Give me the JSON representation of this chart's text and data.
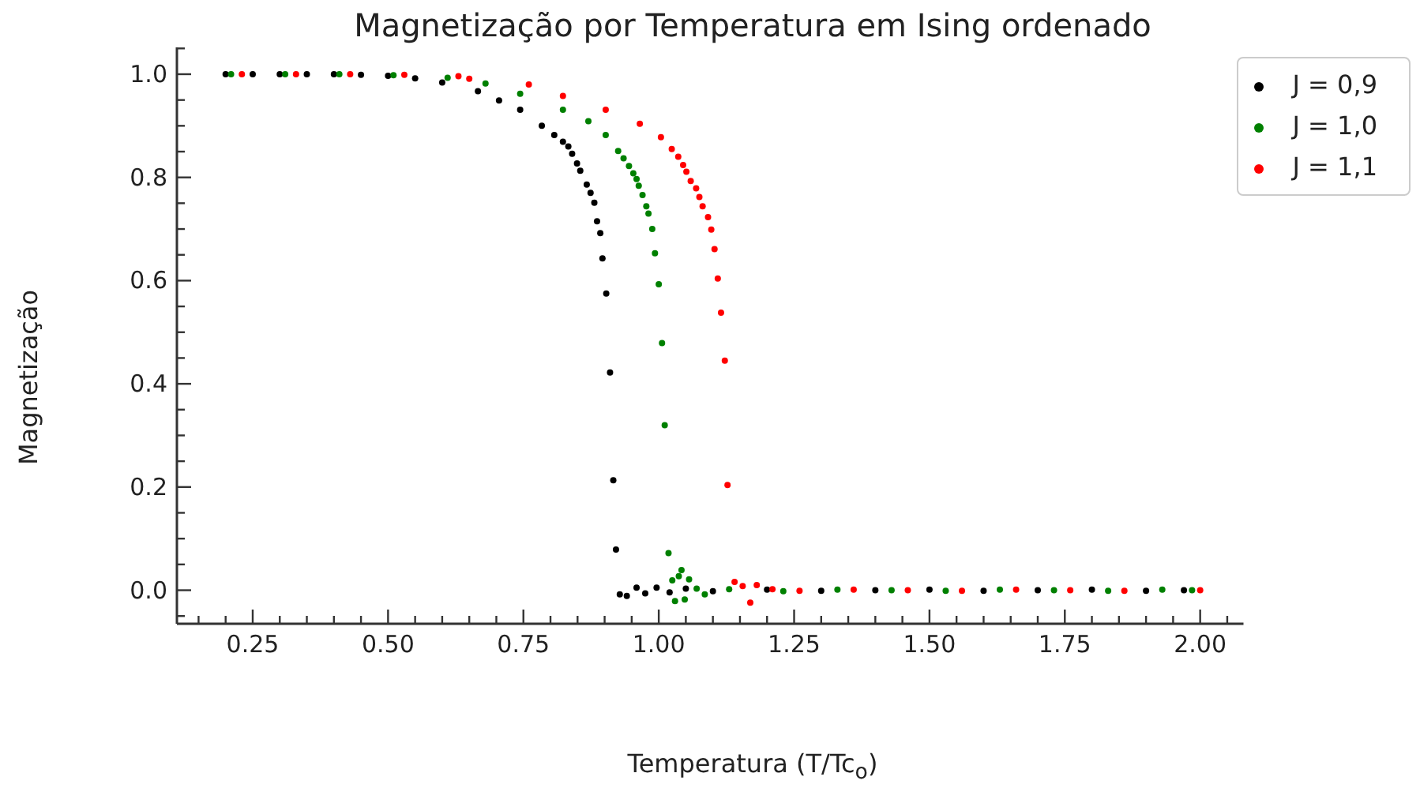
{
  "chart_data": {
    "type": "scatter",
    "title": "Magnetização por Temperatura em Ising ordenado",
    "xlabel": "Temperatura (T/Tc$_{o}$)",
    "ylabel": "Magnetização",
    "xlim": [
      0.11,
      2.08
    ],
    "ylim": [
      -0.065,
      1.052
    ],
    "xticks": [
      {
        "value": 0.15,
        "label": null
      },
      {
        "value": 0.2,
        "label": null
      },
      {
        "value": 0.25,
        "label": "0.25"
      },
      {
        "value": 0.3,
        "label": null
      },
      {
        "value": 0.35,
        "label": null
      },
      {
        "value": 0.4,
        "label": null
      },
      {
        "value": 0.45,
        "label": null
      },
      {
        "value": 0.5,
        "label": "0.50"
      },
      {
        "value": 0.55,
        "label": null
      },
      {
        "value": 0.6,
        "label": null
      },
      {
        "value": 0.65,
        "label": null
      },
      {
        "value": 0.7,
        "label": null
      },
      {
        "value": 0.75,
        "label": "0.75"
      },
      {
        "value": 0.8,
        "label": null
      },
      {
        "value": 0.85,
        "label": null
      },
      {
        "value": 0.9,
        "label": null
      },
      {
        "value": 0.95,
        "label": null
      },
      {
        "value": 1.0,
        "label": "1.00"
      },
      {
        "value": 1.05,
        "label": null
      },
      {
        "value": 1.1,
        "label": null
      },
      {
        "value": 1.15,
        "label": null
      },
      {
        "value": 1.2,
        "label": null
      },
      {
        "value": 1.25,
        "label": "1.25"
      },
      {
        "value": 1.3,
        "label": null
      },
      {
        "value": 1.35,
        "label": null
      },
      {
        "value": 1.4,
        "label": null
      },
      {
        "value": 1.45,
        "label": null
      },
      {
        "value": 1.5,
        "label": "1.50"
      },
      {
        "value": 1.55,
        "label": null
      },
      {
        "value": 1.6,
        "label": null
      },
      {
        "value": 1.65,
        "label": null
      },
      {
        "value": 1.7,
        "label": null
      },
      {
        "value": 1.75,
        "label": "1.75"
      },
      {
        "value": 1.8,
        "label": null
      },
      {
        "value": 1.85,
        "label": null
      },
      {
        "value": 1.9,
        "label": null
      },
      {
        "value": 1.95,
        "label": null
      },
      {
        "value": 2.0,
        "label": "2.00"
      },
      {
        "value": 2.05,
        "label": null
      }
    ],
    "yticks": [
      {
        "value": -0.05,
        "label": null
      },
      {
        "value": 0,
        "label": "0.0"
      },
      {
        "value": 0.05,
        "label": null
      },
      {
        "value": 0.1,
        "label": null
      },
      {
        "value": 0.15,
        "label": null
      },
      {
        "value": 0.2,
        "label": "0.2"
      },
      {
        "value": 0.25,
        "label": null
      },
      {
        "value": 0.3,
        "label": null
      },
      {
        "value": 0.35,
        "label": null
      },
      {
        "value": 0.4,
        "label": "0.4"
      },
      {
        "value": 0.45,
        "label": null
      },
      {
        "value": 0.5,
        "label": null
      },
      {
        "value": 0.55,
        "label": null
      },
      {
        "value": 0.6,
        "label": "0.6"
      },
      {
        "value": 0.65,
        "label": null
      },
      {
        "value": 0.7,
        "label": null
      },
      {
        "value": 0.75,
        "label": null
      },
      {
        "value": 0.8,
        "label": "0.8"
      },
      {
        "value": 0.85,
        "label": null
      },
      {
        "value": 0.9,
        "label": null
      },
      {
        "value": 0.95,
        "label": null
      },
      {
        "value": 1.0,
        "label": "1.0"
      },
      {
        "value": 1.05,
        "label": null
      }
    ],
    "legend": "top right",
    "marker": "circle",
    "series": [
      {
        "name": "J = 0,9",
        "color": "#000000",
        "x": [
          0.2,
          0.25,
          0.3,
          0.35,
          0.4,
          0.45,
          0.5,
          0.55,
          0.6,
          0.666,
          0.705,
          0.744,
          0.784,
          0.807,
          0.823,
          0.833,
          0.84,
          0.849,
          0.855,
          0.867,
          0.874,
          0.881,
          0.886,
          0.892,
          0.896,
          0.903,
          0.91,
          0.916,
          0.921,
          0.928,
          0.941,
          0.959,
          0.975,
          0.996,
          1.02,
          1.05,
          1.1,
          1.2,
          1.3,
          1.4,
          1.5,
          1.6,
          1.7,
          1.8,
          1.9,
          1.97
        ],
        "values": [
          1,
          1,
          1,
          1,
          1,
          0.999,
          0.997,
          0.992,
          0.984,
          0.967,
          0.949,
          0.931,
          0.9,
          0.882,
          0.869,
          0.86,
          0.846,
          0.827,
          0.813,
          0.786,
          0.77,
          0.751,
          0.715,
          0.692,
          0.643,
          0.575,
          0.422,
          0.213,
          0.079,
          -0.008,
          -0.011,
          0.005,
          -0.006,
          0.005,
          -0.004,
          0.003,
          -0.002,
          0.001,
          -0.001,
          0,
          0.001,
          -0.001,
          0,
          0.001,
          -0.001,
          0
        ]
      },
      {
        "name": "J = 1,0",
        "color": "#008000",
        "x": [
          0.21,
          0.31,
          0.41,
          0.51,
          0.61,
          0.68,
          0.744,
          0.823,
          0.87,
          0.902,
          0.925,
          0.935,
          0.945,
          0.953,
          0.959,
          0.963,
          0.97,
          0.977,
          0.981,
          0.988,
          0.993,
          1.0,
          1.006,
          1.011,
          1.018,
          1.025,
          1.03,
          1.037,
          1.042,
          1.048,
          1.056,
          1.07,
          1.085,
          1.13,
          1.23,
          1.33,
          1.43,
          1.53,
          1.63,
          1.73,
          1.83,
          1.93,
          1.985
        ],
        "values": [
          1,
          1,
          1,
          0.998,
          0.993,
          0.982,
          0.962,
          0.931,
          0.909,
          0.882,
          0.851,
          0.837,
          0.822,
          0.808,
          0.797,
          0.784,
          0.766,
          0.744,
          0.73,
          0.7,
          0.653,
          0.593,
          0.479,
          0.32,
          0.072,
          0.019,
          -0.021,
          0.027,
          0.039,
          -0.018,
          0.021,
          0.003,
          -0.008,
          0.002,
          -0.002,
          0.001,
          0,
          -0.001,
          0.001,
          0,
          -0.001,
          0.001,
          0
        ]
      },
      {
        "name": "J = 1,1",
        "color": "#ff0000",
        "x": [
          0.23,
          0.33,
          0.43,
          0.53,
          0.63,
          0.65,
          0.76,
          0.823,
          0.902,
          0.965,
          1.004,
          1.024,
          1.036,
          1.045,
          1.051,
          1.059,
          1.069,
          1.075,
          1.081,
          1.091,
          1.097,
          1.103,
          1.109,
          1.115,
          1.122,
          1.127,
          1.14,
          1.155,
          1.169,
          1.181,
          1.21,
          1.26,
          1.36,
          1.46,
          1.56,
          1.66,
          1.76,
          1.86,
          2.0
        ],
        "values": [
          1,
          1,
          1,
          0.999,
          0.996,
          0.991,
          0.98,
          0.958,
          0.931,
          0.904,
          0.878,
          0.855,
          0.84,
          0.824,
          0.811,
          0.793,
          0.779,
          0.762,
          0.744,
          0.723,
          0.699,
          0.661,
          0.604,
          0.538,
          0.445,
          0.204,
          0.016,
          0.008,
          -0.024,
          0.01,
          0.002,
          -0.001,
          0.001,
          0,
          -0.001,
          0.001,
          0,
          -0.001,
          0
        ]
      }
    ]
  }
}
